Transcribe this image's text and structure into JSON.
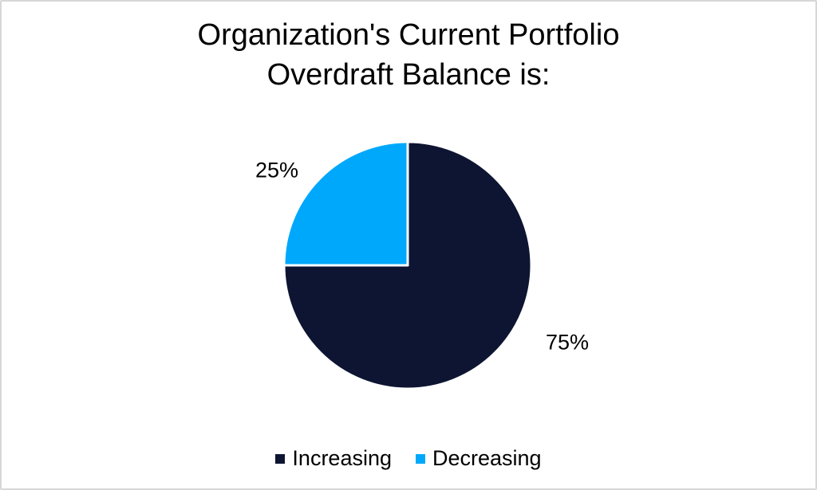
{
  "page": {
    "background": "#FFFFFF",
    "border_color": "#D7D7D7"
  },
  "chart_data": {
    "type": "pie",
    "title": "Organization's Current Portfolio Overdraft Balance is:",
    "title_lines": [
      "Organization's Current Portfolio",
      "Overdraft Balance is:"
    ],
    "categories": [
      "Increasing",
      "Decreasing"
    ],
    "values": [
      75,
      25
    ],
    "data_labels": [
      "75%",
      "25%"
    ],
    "colors": [
      "#0D1532",
      "#00A8FC"
    ],
    "slice_border_color": "#FFFFFF",
    "text_color": "#000000",
    "start_angle_deg": 0,
    "direction": "clockwise",
    "legend_position": "bottom",
    "grid": "off"
  }
}
